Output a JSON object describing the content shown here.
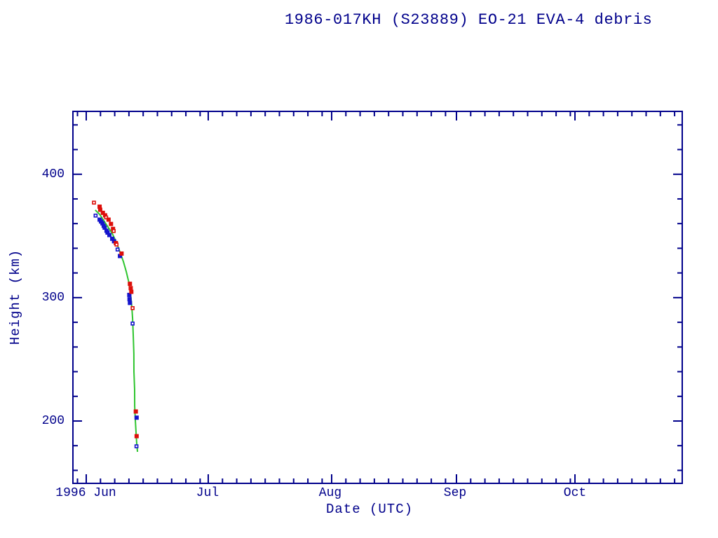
{
  "page": {
    "background": "#ffffff"
  },
  "chart_data": {
    "type": "scatter",
    "title": "1986-017KH (S23889) EO-21 EVA-4 debris",
    "xlabel": "Date (UTC)",
    "ylabel": "Height (km)",
    "x_tick_labels": [
      "1996 Jun",
      "Jul",
      "Aug",
      "Sep",
      "Oct"
    ],
    "y_tick_labels": [
      "400",
      "300",
      "200"
    ],
    "y_major_ticks_km": [
      400,
      300,
      200
    ],
    "y_minor_ticks_km": [
      440,
      420,
      380,
      360,
      340,
      320,
      280,
      260,
      240,
      220,
      180,
      160
    ],
    "y_range_km": [
      149,
      451
    ],
    "x_range_note": "late May 1996 to late Oct 1996, month major ticks",
    "grid": false,
    "legend": null,
    "colors": {
      "axis": "#00008b",
      "text": "#00008b",
      "apogee": "#dd0f0a",
      "perigee": "#1414cc",
      "mean_line": "#2fc52f",
      "background": "#ffffff"
    },
    "series": [
      {
        "name": "mean-height-line",
        "kind": "line",
        "color_key": "mean_line",
        "points_day_km": [
          [
            3.2,
            371
          ],
          [
            4.3,
            367.5
          ],
          [
            5.3,
            362.5
          ],
          [
            6.3,
            357.5
          ],
          [
            7.4,
            352
          ],
          [
            8.1,
            347
          ],
          [
            8.8,
            341.5
          ],
          [
            9.45,
            335.5
          ],
          [
            10.15,
            329
          ],
          [
            10.85,
            321
          ],
          [
            11.5,
            312
          ],
          [
            11.9,
            303
          ],
          [
            12.2,
            292.5
          ],
          [
            12.4,
            283
          ],
          [
            12.55,
            270
          ],
          [
            12.7,
            254.5
          ],
          [
            12.72,
            240
          ],
          [
            12.9,
            225.5
          ],
          [
            12.92,
            212
          ],
          [
            13.07,
            200.5
          ],
          [
            13.25,
            190
          ],
          [
            13.4,
            182.5
          ],
          [
            13.6,
            175
          ]
        ]
      },
      {
        "name": "perigee-height",
        "kind": "scatter",
        "marker": "square",
        "color_key": "perigee",
        "points_day_km_open": [
          [
            3.3,
            366.5,
            1
          ],
          [
            4.2,
            363.5,
            0
          ],
          [
            4.55,
            362,
            0
          ],
          [
            4.9,
            360.5,
            0
          ],
          [
            5.2,
            358.5,
            0
          ],
          [
            5.45,
            357,
            0
          ],
          [
            5.9,
            354.5,
            0
          ],
          [
            6.15,
            353,
            0
          ],
          [
            6.6,
            351,
            0
          ],
          [
            7.3,
            348,
            0
          ],
          [
            7.75,
            346,
            0
          ],
          [
            8.7,
            339,
            1
          ],
          [
            9.2,
            334,
            0
          ],
          [
            11.5,
            302.5,
            0
          ],
          [
            11.55,
            299,
            0
          ],
          [
            11.65,
            296,
            0
          ],
          [
            12.4,
            279,
            1
          ],
          [
            13.3,
            203,
            0
          ],
          [
            13.35,
            179.5,
            1
          ]
        ]
      },
      {
        "name": "apogee-height",
        "kind": "scatter",
        "marker": "square",
        "color_key": "apogee",
        "points_day_km_open": [
          [
            2.9,
            377,
            1
          ],
          [
            4.2,
            374,
            0
          ],
          [
            4.35,
            371.5,
            0
          ],
          [
            5.0,
            369,
            0
          ],
          [
            5.55,
            367,
            0
          ],
          [
            5.9,
            365,
            1
          ],
          [
            6.4,
            363.5,
            0
          ],
          [
            7.0,
            360,
            0
          ],
          [
            7.5,
            356,
            0
          ],
          [
            7.75,
            354,
            1
          ],
          [
            8.2,
            344.5,
            0
          ],
          [
            8.45,
            343,
            1
          ],
          [
            9.6,
            336,
            0
          ],
          [
            11.65,
            311.5,
            0
          ],
          [
            11.85,
            308,
            0
          ],
          [
            12.0,
            305,
            0
          ],
          [
            12.4,
            291.5,
            1
          ],
          [
            13.1,
            208,
            0
          ],
          [
            13.3,
            188,
            0
          ]
        ]
      }
    ],
    "x_unit": "fractional day of 1996 June for all data points"
  }
}
